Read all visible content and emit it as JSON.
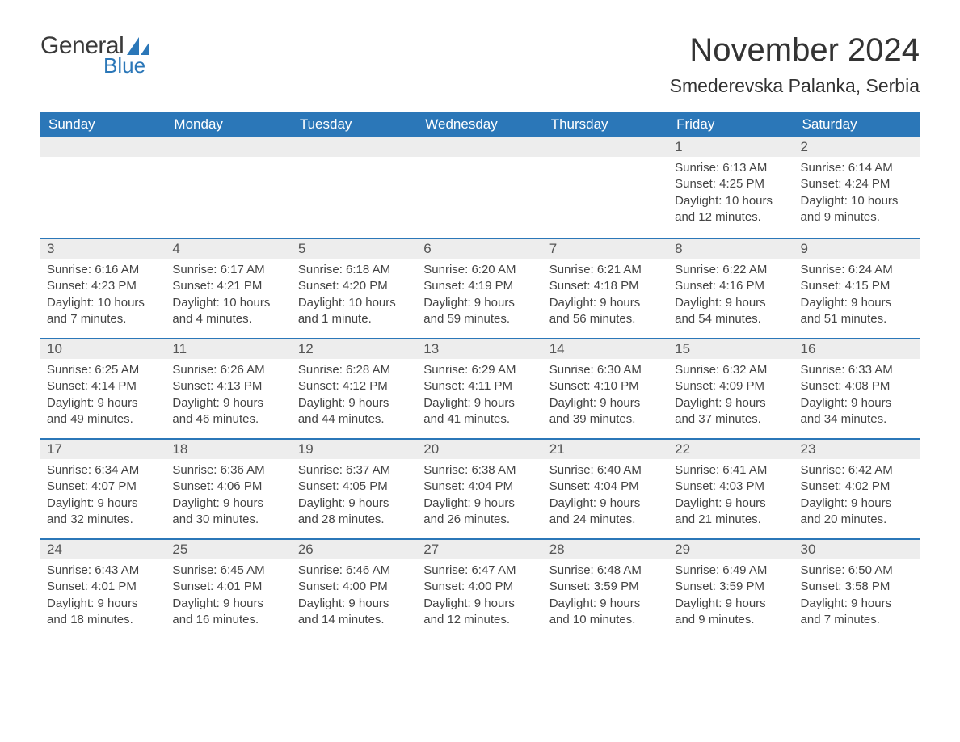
{
  "brand": {
    "general": "General",
    "blue": "Blue"
  },
  "title": "November 2024",
  "location": "Smederevska Palanka, Serbia",
  "colors": {
    "accent": "#2b77b8",
    "header_text": "#ffffff",
    "daybar_bg": "#ededed",
    "daynum_text": "#555555",
    "body_text": "#444444",
    "page_bg": "#ffffff"
  },
  "weekdays": [
    "Sunday",
    "Monday",
    "Tuesday",
    "Wednesday",
    "Thursday",
    "Friday",
    "Saturday"
  ],
  "weeks": [
    [
      null,
      null,
      null,
      null,
      null,
      {
        "n": "1",
        "sunrise": "Sunrise: 6:13 AM",
        "sunset": "Sunset: 4:25 PM",
        "daylight": "Daylight: 10 hours and 12 minutes."
      },
      {
        "n": "2",
        "sunrise": "Sunrise: 6:14 AM",
        "sunset": "Sunset: 4:24 PM",
        "daylight": "Daylight: 10 hours and 9 minutes."
      }
    ],
    [
      {
        "n": "3",
        "sunrise": "Sunrise: 6:16 AM",
        "sunset": "Sunset: 4:23 PM",
        "daylight": "Daylight: 10 hours and 7 minutes."
      },
      {
        "n": "4",
        "sunrise": "Sunrise: 6:17 AM",
        "sunset": "Sunset: 4:21 PM",
        "daylight": "Daylight: 10 hours and 4 minutes."
      },
      {
        "n": "5",
        "sunrise": "Sunrise: 6:18 AM",
        "sunset": "Sunset: 4:20 PM",
        "daylight": "Daylight: 10 hours and 1 minute."
      },
      {
        "n": "6",
        "sunrise": "Sunrise: 6:20 AM",
        "sunset": "Sunset: 4:19 PM",
        "daylight": "Daylight: 9 hours and 59 minutes."
      },
      {
        "n": "7",
        "sunrise": "Sunrise: 6:21 AM",
        "sunset": "Sunset: 4:18 PM",
        "daylight": "Daylight: 9 hours and 56 minutes."
      },
      {
        "n": "8",
        "sunrise": "Sunrise: 6:22 AM",
        "sunset": "Sunset: 4:16 PM",
        "daylight": "Daylight: 9 hours and 54 minutes."
      },
      {
        "n": "9",
        "sunrise": "Sunrise: 6:24 AM",
        "sunset": "Sunset: 4:15 PM",
        "daylight": "Daylight: 9 hours and 51 minutes."
      }
    ],
    [
      {
        "n": "10",
        "sunrise": "Sunrise: 6:25 AM",
        "sunset": "Sunset: 4:14 PM",
        "daylight": "Daylight: 9 hours and 49 minutes."
      },
      {
        "n": "11",
        "sunrise": "Sunrise: 6:26 AM",
        "sunset": "Sunset: 4:13 PM",
        "daylight": "Daylight: 9 hours and 46 minutes."
      },
      {
        "n": "12",
        "sunrise": "Sunrise: 6:28 AM",
        "sunset": "Sunset: 4:12 PM",
        "daylight": "Daylight: 9 hours and 44 minutes."
      },
      {
        "n": "13",
        "sunrise": "Sunrise: 6:29 AM",
        "sunset": "Sunset: 4:11 PM",
        "daylight": "Daylight: 9 hours and 41 minutes."
      },
      {
        "n": "14",
        "sunrise": "Sunrise: 6:30 AM",
        "sunset": "Sunset: 4:10 PM",
        "daylight": "Daylight: 9 hours and 39 minutes."
      },
      {
        "n": "15",
        "sunrise": "Sunrise: 6:32 AM",
        "sunset": "Sunset: 4:09 PM",
        "daylight": "Daylight: 9 hours and 37 minutes."
      },
      {
        "n": "16",
        "sunrise": "Sunrise: 6:33 AM",
        "sunset": "Sunset: 4:08 PM",
        "daylight": "Daylight: 9 hours and 34 minutes."
      }
    ],
    [
      {
        "n": "17",
        "sunrise": "Sunrise: 6:34 AM",
        "sunset": "Sunset: 4:07 PM",
        "daylight": "Daylight: 9 hours and 32 minutes."
      },
      {
        "n": "18",
        "sunrise": "Sunrise: 6:36 AM",
        "sunset": "Sunset: 4:06 PM",
        "daylight": "Daylight: 9 hours and 30 minutes."
      },
      {
        "n": "19",
        "sunrise": "Sunrise: 6:37 AM",
        "sunset": "Sunset: 4:05 PM",
        "daylight": "Daylight: 9 hours and 28 minutes."
      },
      {
        "n": "20",
        "sunrise": "Sunrise: 6:38 AM",
        "sunset": "Sunset: 4:04 PM",
        "daylight": "Daylight: 9 hours and 26 minutes."
      },
      {
        "n": "21",
        "sunrise": "Sunrise: 6:40 AM",
        "sunset": "Sunset: 4:04 PM",
        "daylight": "Daylight: 9 hours and 24 minutes."
      },
      {
        "n": "22",
        "sunrise": "Sunrise: 6:41 AM",
        "sunset": "Sunset: 4:03 PM",
        "daylight": "Daylight: 9 hours and 21 minutes."
      },
      {
        "n": "23",
        "sunrise": "Sunrise: 6:42 AM",
        "sunset": "Sunset: 4:02 PM",
        "daylight": "Daylight: 9 hours and 20 minutes."
      }
    ],
    [
      {
        "n": "24",
        "sunrise": "Sunrise: 6:43 AM",
        "sunset": "Sunset: 4:01 PM",
        "daylight": "Daylight: 9 hours and 18 minutes."
      },
      {
        "n": "25",
        "sunrise": "Sunrise: 6:45 AM",
        "sunset": "Sunset: 4:01 PM",
        "daylight": "Daylight: 9 hours and 16 minutes."
      },
      {
        "n": "26",
        "sunrise": "Sunrise: 6:46 AM",
        "sunset": "Sunset: 4:00 PM",
        "daylight": "Daylight: 9 hours and 14 minutes."
      },
      {
        "n": "27",
        "sunrise": "Sunrise: 6:47 AM",
        "sunset": "Sunset: 4:00 PM",
        "daylight": "Daylight: 9 hours and 12 minutes."
      },
      {
        "n": "28",
        "sunrise": "Sunrise: 6:48 AM",
        "sunset": "Sunset: 3:59 PM",
        "daylight": "Daylight: 9 hours and 10 minutes."
      },
      {
        "n": "29",
        "sunrise": "Sunrise: 6:49 AM",
        "sunset": "Sunset: 3:59 PM",
        "daylight": "Daylight: 9 hours and 9 minutes."
      },
      {
        "n": "30",
        "sunrise": "Sunrise: 6:50 AM",
        "sunset": "Sunset: 3:58 PM",
        "daylight": "Daylight: 9 hours and 7 minutes."
      }
    ]
  ]
}
